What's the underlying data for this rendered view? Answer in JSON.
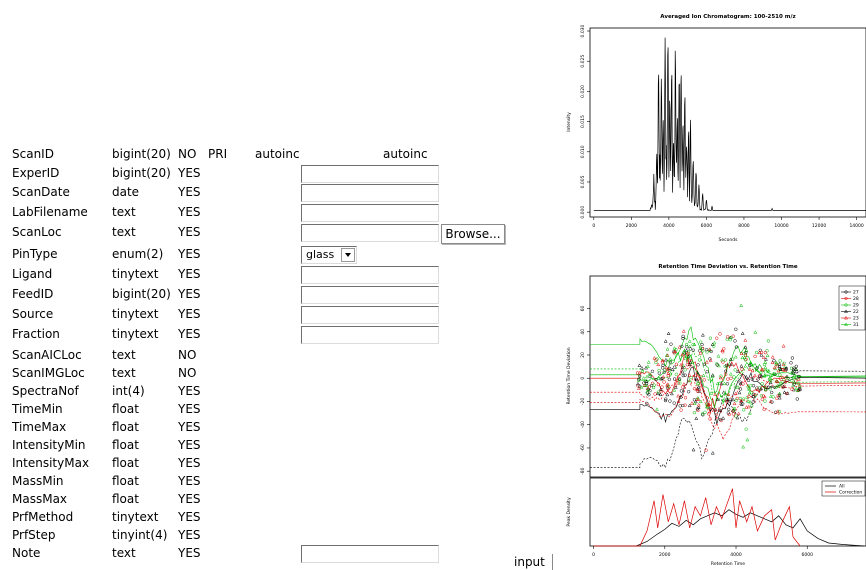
{
  "form": {
    "rows": [
      {
        "name": "ScanID",
        "type": "bigint(20)",
        "null": "NO",
        "key": "PRI",
        "extra": "autoinc",
        "default": "autoinc",
        "widget": "none"
      },
      {
        "name": "ExperID",
        "type": "bigint(20)",
        "null": "YES",
        "key": "",
        "extra": "",
        "default": "",
        "widget": "text"
      },
      {
        "name": "ScanDate",
        "type": "date",
        "null": "YES",
        "key": "",
        "extra": "",
        "default": "",
        "widget": "text"
      },
      {
        "name": "LabFilename",
        "type": "text",
        "null": "YES",
        "key": "",
        "extra": "",
        "default": "",
        "widget": "text"
      },
      {
        "name": "ScanLoc",
        "type": "text",
        "null": "YES",
        "key": "",
        "extra": "",
        "default": "",
        "widget": "file"
      },
      {
        "name": "PinType",
        "type": "enum(2)",
        "null": "YES",
        "key": "",
        "extra": "",
        "default": "",
        "widget": "select"
      },
      {
        "name": "Ligand",
        "type": "tinytext",
        "null": "YES",
        "key": "",
        "extra": "",
        "default": "",
        "widget": "text"
      },
      {
        "name": "FeedID",
        "type": "bigint(20)",
        "null": "YES",
        "key": "",
        "extra": "",
        "default": "",
        "widget": "text"
      },
      {
        "name": "Source",
        "type": "tinytext",
        "null": "YES",
        "key": "",
        "extra": "",
        "default": "",
        "widget": "text"
      },
      {
        "name": "Fraction",
        "type": "tinytext",
        "null": "YES",
        "key": "",
        "extra": "",
        "default": "",
        "widget": "text"
      },
      {
        "name": "ScanAICLoc",
        "type": "text",
        "null": "NO",
        "key": "",
        "extra": "",
        "default": "",
        "widget": "none"
      },
      {
        "name": "ScanIMGLoc",
        "type": "text",
        "null": "NO",
        "key": "",
        "extra": "",
        "default": "",
        "widget": "none"
      },
      {
        "name": "SpectraNof",
        "type": "int(4)",
        "null": "YES",
        "key": "",
        "extra": "",
        "default": "",
        "widget": "none"
      },
      {
        "name": "TimeMin",
        "type": "float",
        "null": "YES",
        "key": "",
        "extra": "",
        "default": "",
        "widget": "none"
      },
      {
        "name": "TimeMax",
        "type": "float",
        "null": "YES",
        "key": "",
        "extra": "",
        "default": "",
        "widget": "none"
      },
      {
        "name": "IntensityMin",
        "type": "float",
        "null": "YES",
        "key": "",
        "extra": "",
        "default": "",
        "widget": "none"
      },
      {
        "name": "IntensityMax",
        "type": "float",
        "null": "YES",
        "key": "",
        "extra": "",
        "default": "",
        "widget": "none"
      },
      {
        "name": "MassMin",
        "type": "float",
        "null": "YES",
        "key": "",
        "extra": "",
        "default": "",
        "widget": "none"
      },
      {
        "name": "MassMax",
        "type": "float",
        "null": "YES",
        "key": "",
        "extra": "",
        "default": "",
        "widget": "none"
      },
      {
        "name": "PrfMethod",
        "type": "tinytext",
        "null": "YES",
        "key": "",
        "extra": "",
        "default": "",
        "widget": "none"
      },
      {
        "name": "PrfStep",
        "type": "tinyint(4)",
        "null": "YES",
        "key": "",
        "extra": "",
        "default": "",
        "widget": "none"
      },
      {
        "name": "Note",
        "type": "text",
        "null": "YES",
        "key": "",
        "extra": "",
        "default": "",
        "widget": "text"
      }
    ],
    "browse_label": "Browse...",
    "pintype_selected": "glass",
    "submit_label": "input"
  },
  "chart_data": [
    {
      "type": "line",
      "title": "Averaged Ion Chromatogram: 100-2510 m/z",
      "xlabel": "Seconds",
      "ylabel": "Intensity",
      "xlim": [
        -200,
        14500
      ],
      "ylim": [
        -0.0008,
        0.0305
      ],
      "x_ticks": [
        0,
        2000,
        4000,
        6000,
        8000,
        10000,
        12000,
        14000
      ],
      "x_tick_labels": [
        "0",
        "2000",
        "4000",
        "6000",
        "8000",
        "10000",
        "12000",
        "14000"
      ],
      "y_ticks": [
        0.0,
        0.005,
        0.01,
        0.015,
        0.02,
        0.025,
        0.03
      ],
      "y_tick_labels": [
        "0.000",
        "0.005",
        "0.010",
        "0.015",
        "0.020",
        "0.025",
        "0.030"
      ],
      "series": [
        {
          "color": "#000000",
          "peaks": [
            [
              3200,
              0.005
            ],
            [
              3350,
              0.009
            ],
            [
              3450,
              0.023
            ],
            [
              3520,
              0.007
            ],
            [
              3600,
              0.022
            ],
            [
              3700,
              0.012
            ],
            [
              3800,
              0.026
            ],
            [
              3850,
              0.008
            ],
            [
              3950,
              0.027
            ],
            [
              4050,
              0.015
            ],
            [
              4150,
              0.021
            ],
            [
              4250,
              0.009
            ],
            [
              4350,
              0.024
            ],
            [
              4450,
              0.011
            ],
            [
              4550,
              0.019
            ],
            [
              4650,
              0.023
            ],
            [
              4750,
              0.013
            ],
            [
              4850,
              0.018
            ],
            [
              4950,
              0.01
            ],
            [
              5050,
              0.012
            ],
            [
              5150,
              0.014
            ],
            [
              5300,
              0.008
            ],
            [
              5450,
              0.006
            ],
            [
              5600,
              0.004
            ],
            [
              5800,
              0.003
            ],
            [
              6000,
              0.002
            ],
            [
              6300,
              0.001
            ],
            [
              9500,
              0.0006
            ]
          ]
        }
      ]
    },
    {
      "type": "line",
      "title": "Retention Time Deviation vs. Retention Time",
      "xlabel": "Retention Time",
      "ylabel_top": "Retention Time Deviation",
      "ylabel_bottom": "Peak Density",
      "xlim": [
        -100,
        7650
      ],
      "ylim": [
        -85,
        88
      ],
      "x_ticks": [
        0,
        2000,
        4000,
        6000
      ],
      "x_tick_labels": [
        "0",
        "2000",
        "4000",
        "6000"
      ],
      "y_ticks": [
        -80,
        -60,
        -40,
        -20,
        0,
        20,
        40,
        60
      ],
      "y_tick_labels": [
        "-80",
        "-60",
        "-40",
        "-20",
        "0",
        "20",
        "40",
        "60"
      ],
      "legend_top": {
        "position": "top-right",
        "entries": [
          {
            "name": "27",
            "color": "#000000",
            "marker": "circle"
          },
          {
            "name": "28",
            "color": "#dd0000",
            "marker": "circle"
          },
          {
            "name": "29",
            "color": "#00bb00",
            "marker": "circle"
          },
          {
            "name": "22",
            "color": "#000000",
            "marker": "triangle"
          },
          {
            "name": "23",
            "color": "#dd0000",
            "marker": "triangle"
          },
          {
            "name": "31",
            "color": "#00bb00",
            "marker": "triangle"
          }
        ]
      },
      "legend_bottom": {
        "position": "top-right",
        "entries": [
          {
            "name": "All",
            "color": "#000000"
          },
          {
            "name": "Correction",
            "color": "#dd0000"
          }
        ]
      },
      "density_all": [
        [
          0,
          0
        ],
        [
          1200,
          0
        ],
        [
          1500,
          3
        ],
        [
          1800,
          8
        ],
        [
          2000,
          11
        ],
        [
          2200,
          15
        ],
        [
          2400,
          13
        ],
        [
          2600,
          17
        ],
        [
          2800,
          14
        ],
        [
          3000,
          18
        ],
        [
          3200,
          20
        ],
        [
          3400,
          22
        ],
        [
          3600,
          20
        ],
        [
          3800,
          24
        ],
        [
          4000,
          21
        ],
        [
          4200,
          19
        ],
        [
          4400,
          22
        ],
        [
          4600,
          20
        ],
        [
          4800,
          18
        ],
        [
          5000,
          16
        ],
        [
          5200,
          20
        ],
        [
          5400,
          14
        ],
        [
          5600,
          12
        ],
        [
          5800,
          18
        ],
        [
          6000,
          10
        ],
        [
          6300,
          5
        ],
        [
          6600,
          2
        ],
        [
          7000,
          1
        ],
        [
          7600,
          0
        ]
      ],
      "density_correction": [
        [
          0,
          0
        ],
        [
          1300,
          0
        ],
        [
          1500,
          10
        ],
        [
          1700,
          30
        ],
        [
          1800,
          12
        ],
        [
          1950,
          34
        ],
        [
          2100,
          16
        ],
        [
          2250,
          28
        ],
        [
          2400,
          14
        ],
        [
          2550,
          30
        ],
        [
          2700,
          12
        ],
        [
          2850,
          26
        ],
        [
          3000,
          20
        ],
        [
          3150,
          32
        ],
        [
          3300,
          14
        ],
        [
          3450,
          26
        ],
        [
          3600,
          18
        ],
        [
          3750,
          28
        ],
        [
          3900,
          38
        ],
        [
          4000,
          12
        ],
        [
          4100,
          30
        ],
        [
          4300,
          16
        ],
        [
          4450,
          26
        ],
        [
          4600,
          10
        ],
        [
          4800,
          20
        ],
        [
          5000,
          24
        ],
        [
          5100,
          4
        ],
        [
          5300,
          16
        ],
        [
          5500,
          26
        ],
        [
          5600,
          6
        ],
        [
          5800,
          0
        ]
      ]
    }
  ]
}
